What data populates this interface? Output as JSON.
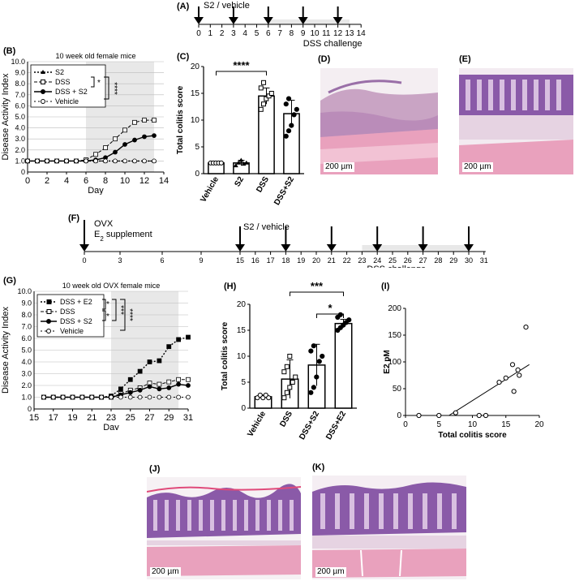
{
  "panels": {
    "A": "(A)",
    "B": "(B)",
    "C": "(C)",
    "D": "(D)",
    "E": "(E)",
    "F": "(F)",
    "G": "(G)",
    "H": "(H)",
    "I": "(I)",
    "J": "(J)",
    "K": "(K)"
  },
  "timelineA": {
    "label_top": "S2 / vehicle",
    "label_challenge": "DSS challenge",
    "ticks": [
      0,
      1,
      2,
      3,
      4,
      5,
      6,
      7,
      8,
      9,
      10,
      11,
      12,
      13,
      14
    ],
    "arrow_days": [
      0,
      3,
      6,
      9,
      12
    ],
    "shade_from": 6,
    "shade_to": 13
  },
  "timelineF": {
    "label_top1": "OVX",
    "label_top2": "E",
    "label_top2_sub": "2",
    "label_top2_rest": " supplement",
    "label_s2": "S2 / vehicle",
    "label_challenge": "DSS challenge",
    "ticks": [
      0,
      3,
      6,
      9,
      15,
      16,
      17,
      18,
      19,
      20,
      21,
      22,
      23,
      24,
      25,
      26,
      27,
      28,
      29,
      30,
      31
    ],
    "arrow_days": [
      0,
      15,
      18,
      21,
      24,
      27,
      30
    ],
    "shade_from": 23,
    "shade_to": 30
  },
  "chart_data": [
    {
      "panel": "B",
      "type": "line",
      "title": "10 week old female mice",
      "xlabel": "Day",
      "ylabel": "Disease Activity Index",
      "xlim": [
        0,
        14
      ],
      "ylim": [
        0,
        10.0
      ],
      "xticks": [
        "0",
        "2",
        "4",
        "6",
        "8",
        "10",
        "12",
        "14"
      ],
      "yticks": [
        "0",
        "1.0",
        "2.0",
        "3.0",
        "4.0",
        "5.0",
        "6.0",
        "7.0",
        "8.0",
        "9.0",
        "10.0"
      ],
      "shaded_x": [
        6,
        13
      ],
      "x": [
        0,
        1,
        2,
        3,
        4,
        5,
        6,
        7,
        8,
        9,
        10,
        11,
        12,
        13
      ],
      "series": [
        {
          "name": "S2",
          "values": [
            1.0,
            1.0,
            1.0,
            1.0,
            1.0,
            1.0,
            1.0,
            1.0,
            1.0,
            1.0,
            1.0,
            1.0,
            1.0,
            1.0
          ]
        },
        {
          "name": "DSS",
          "values": [
            1.0,
            1.0,
            1.0,
            1.0,
            1.0,
            1.0,
            1.1,
            1.6,
            2.2,
            3.0,
            3.8,
            4.5,
            4.7,
            4.7
          ]
        },
        {
          "name": "DSS + S2",
          "values": [
            1.0,
            1.0,
            1.0,
            1.0,
            1.0,
            1.0,
            1.0,
            1.1,
            1.3,
            1.8,
            2.5,
            2.9,
            3.2,
            3.3
          ]
        },
        {
          "name": "Vehicle",
          "values": [
            1.0,
            1.0,
            1.0,
            1.0,
            1.0,
            1.0,
            1.0,
            1.0,
            1.0,
            1.0,
            1.0,
            1.0,
            1.0,
            1.0
          ]
        }
      ],
      "significance": [
        "*",
        "****"
      ]
    },
    {
      "panel": "C",
      "type": "bar",
      "ylabel": "Total colitis score",
      "ylim": [
        0,
        20
      ],
      "yticks": [
        "0",
        "5",
        "10",
        "15",
        "20"
      ],
      "categories": [
        "Vehicle",
        "S2",
        "DSS",
        "DSS+S2"
      ],
      "values": [
        2.0,
        2.0,
        14.5,
        11.2
      ],
      "errors": [
        0.1,
        0.5,
        1.5,
        2.5
      ],
      "points": [
        [
          2,
          2,
          2,
          2,
          2
        ],
        [
          1.5,
          2,
          2.5,
          1.8,
          2
        ],
        [
          12,
          13,
          14,
          14.5,
          15,
          16,
          17
        ],
        [
          7,
          8,
          9,
          11,
          12,
          13,
          14
        ]
      ],
      "significance": "****"
    },
    {
      "panel": "G",
      "type": "line",
      "title": "10 week old OVX female mice",
      "xlabel": "Day",
      "ylabel": "Disease Activity Index",
      "xlim": [
        15,
        31
      ],
      "ylim": [
        0,
        10.0
      ],
      "xticks": [
        "15",
        "17",
        "19",
        "21",
        "23",
        "25",
        "27",
        "29",
        "31"
      ],
      "yticks": [
        "0",
        "1.0",
        "2.0",
        "3.0",
        "4.0",
        "5.0",
        "6.0",
        "7.0",
        "8.0",
        "9.0",
        "10.0"
      ],
      "shaded_x": [
        23,
        30
      ],
      "x": [
        16,
        17,
        18,
        19,
        20,
        21,
        22,
        23,
        24,
        25,
        26,
        27,
        28,
        29,
        30,
        31
      ],
      "series": [
        {
          "name": "DSS + E2",
          "values": [
            1.0,
            1.0,
            1.0,
            1.0,
            1.0,
            1.0,
            1.0,
            1.1,
            1.7,
            2.5,
            3.2,
            4.0,
            4.1,
            5.3,
            5.9,
            6.1
          ]
        },
        {
          "name": "DSS",
          "values": [
            1.0,
            1.0,
            1.0,
            1.0,
            1.0,
            1.0,
            1.0,
            1.0,
            1.3,
            1.6,
            1.8,
            2.2,
            2.1,
            2.3,
            2.5,
            2.5
          ]
        },
        {
          "name": "DSS + S2",
          "values": [
            1.0,
            1.0,
            1.0,
            1.0,
            1.0,
            1.0,
            1.0,
            1.0,
            1.2,
            1.4,
            1.6,
            1.9,
            1.7,
            1.8,
            2.1,
            2.0
          ]
        },
        {
          "name": "Vehicle",
          "values": [
            1.0,
            1.0,
            1.0,
            1.0,
            1.0,
            1.0,
            1.0,
            1.0,
            1.0,
            1.0,
            1.0,
            1.0,
            1.0,
            1.0,
            1.0,
            1.0
          ]
        }
      ],
      "significance": [
        "*",
        "*",
        "***",
        "****"
      ]
    },
    {
      "panel": "H",
      "type": "bar",
      "ylabel": "Total colitis score",
      "ylim": [
        0,
        20
      ],
      "yticks": [
        "0",
        "5",
        "10",
        "15",
        "20"
      ],
      "categories": [
        "Vehicle",
        "DSS",
        "DSS+S2",
        "DSS+E2"
      ],
      "values": [
        2.2,
        5.6,
        8.3,
        16.3
      ],
      "errors": [
        0.3,
        3.7,
        4.0,
        0.8
      ],
      "points": [
        [
          2,
          2.5,
          2,
          2.5,
          2
        ],
        [
          2,
          3,
          4,
          5,
          6,
          7,
          8,
          10
        ],
        [
          3,
          4,
          6,
          9,
          10,
          11,
          12
        ],
        [
          15,
          15.5,
          16,
          16.5,
          17,
          17.5,
          18
        ]
      ],
      "significance": [
        "***",
        "*"
      ]
    },
    {
      "panel": "I",
      "type": "scatter",
      "xlabel": "Total colitis score",
      "ylabel": "E2 pM",
      "xlim": [
        0,
        20
      ],
      "ylim": [
        0,
        200
      ],
      "xticks": [
        "0",
        "5",
        "10",
        "15",
        "20"
      ],
      "yticks": [
        "0",
        "50",
        "100",
        "150",
        "200"
      ],
      "points": [
        [
          2,
          0
        ],
        [
          5,
          0
        ],
        [
          7.5,
          5
        ],
        [
          11,
          0
        ],
        [
          12,
          0
        ],
        [
          14,
          62
        ],
        [
          15,
          70
        ],
        [
          16,
          95
        ],
        [
          16.2,
          45
        ],
        [
          16.8,
          85
        ],
        [
          17,
          75
        ],
        [
          18,
          165
        ]
      ],
      "fit": [
        [
          6.5,
          0
        ],
        [
          18.5,
          95
        ]
      ]
    }
  ],
  "micrographs": {
    "D": "200 µm",
    "E": "200 µm",
    "J": "200 µm",
    "K": "200 µm"
  },
  "colors": {
    "shade": "#e8e8e8",
    "tissue_pink": "#e9a1bd",
    "crypt_purple": "#8a5aa8"
  }
}
